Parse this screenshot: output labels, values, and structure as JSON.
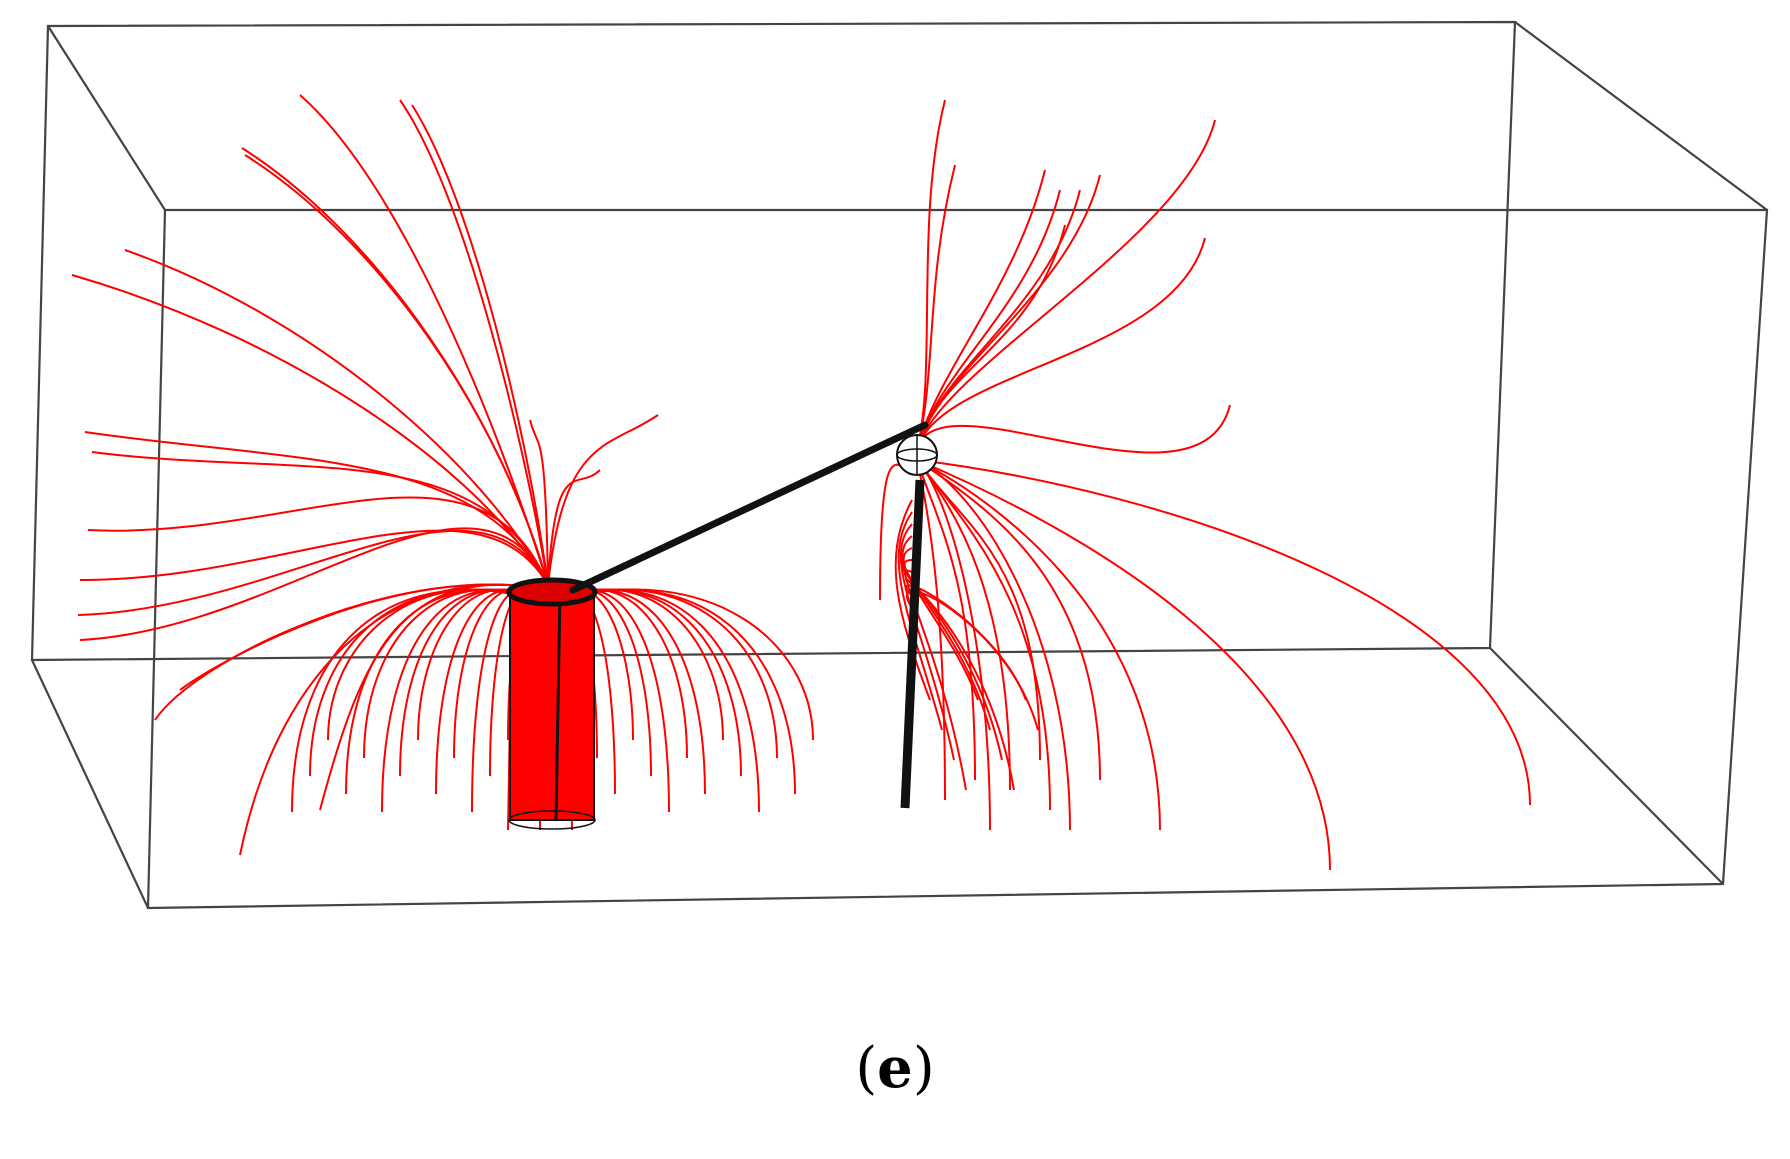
{
  "figure": {
    "caption_open": "(",
    "caption_letter": "e",
    "caption_close": ")"
  },
  "colors": {
    "field_line": "#ff0000",
    "box_edge": "#444444",
    "conductor": "#111111",
    "background": "#ffffff"
  }
}
